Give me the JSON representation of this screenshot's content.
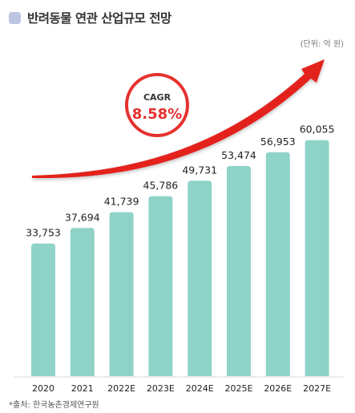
{
  "header": {
    "title": "반려동물 연관 산업규모 전망"
  },
  "unit_label": "(단위: 억 원)",
  "source": "*출처: 한국농촌경제연구원",
  "cagr": {
    "label": "CAGR",
    "value": "8.58%"
  },
  "colors": {
    "bar": "#8fd3c8",
    "arrow": "#e3201f",
    "cagr_circle": "#e5312f",
    "title_marker": "#bcc6e4"
  },
  "chart_data": {
    "type": "bar",
    "categories": [
      "2020",
      "2021",
      "2022E",
      "2023E",
      "2024E",
      "2025E",
      "2026E",
      "2027E"
    ],
    "values": [
      33753,
      37694,
      41739,
      45786,
      49731,
      53474,
      56953,
      60055
    ],
    "value_labels": [
      "33,753",
      "37,694",
      "41,739",
      "45,786",
      "49,731",
      "53,474",
      "56,953",
      "60,055"
    ],
    "grid": false,
    "legend": "none"
  }
}
